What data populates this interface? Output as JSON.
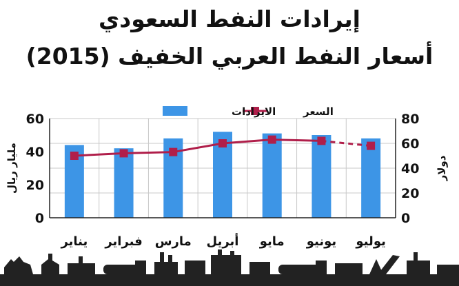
{
  "chart_data": {
    "type": "bar+line",
    "title": "إيرادات النفط السعودي",
    "subtitle": "أسعار النفط العربي الخفيف (2015)",
    "categories": [
      "يناير",
      "فبراير",
      "مارس",
      "أبريل",
      "مايو",
      "يونيو",
      "يوليو"
    ],
    "series": [
      {
        "name": "الايرادات",
        "type": "bar",
        "axis": "left",
        "values": [
          44,
          42,
          48,
          52,
          51,
          50,
          48
        ]
      },
      {
        "name": "السعر",
        "type": "line",
        "axis": "right",
        "values": [
          50,
          52,
          53,
          60,
          63,
          62,
          58
        ]
      }
    ],
    "y_left": {
      "label": "مليار ريال",
      "ylim": [
        0,
        60
      ],
      "ticks": [
        0,
        20,
        40,
        60
      ]
    },
    "y_right": {
      "label": "دولار",
      "ylim": [
        0,
        80
      ],
      "ticks": [
        0,
        20,
        40,
        60,
        80
      ]
    },
    "grid": true,
    "legend": "top",
    "colors": {
      "bar": "#3d95e6",
      "line": "#b01e4a",
      "grid": "#c8c8c8"
    }
  }
}
